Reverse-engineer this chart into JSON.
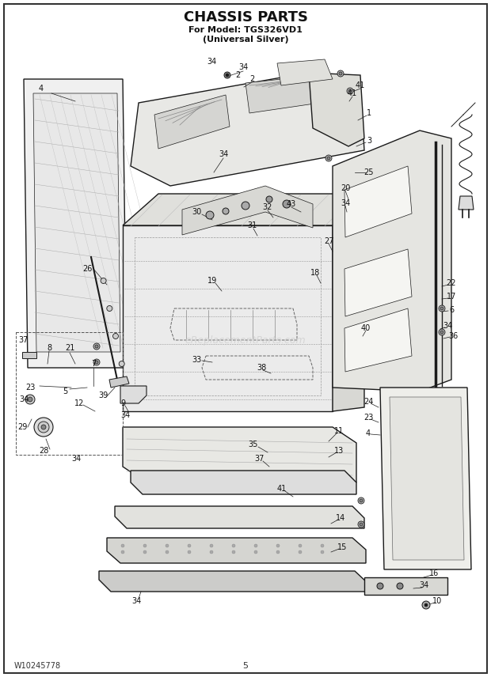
{
  "title_line1": "CHASSIS PARTS",
  "title_line2": "For Model: TGS326VD1",
  "title_line3": "(Universal Silver)",
  "footer_left": "W10245778",
  "footer_center": "5",
  "bg_color": "#ffffff",
  "border_color": "#333333",
  "line_color": "#1a1a1a",
  "label_color": "#111111",
  "watermark": "eReplacementParts.com",
  "fig_w": 6.2,
  "fig_h": 8.56,
  "dpi": 100
}
